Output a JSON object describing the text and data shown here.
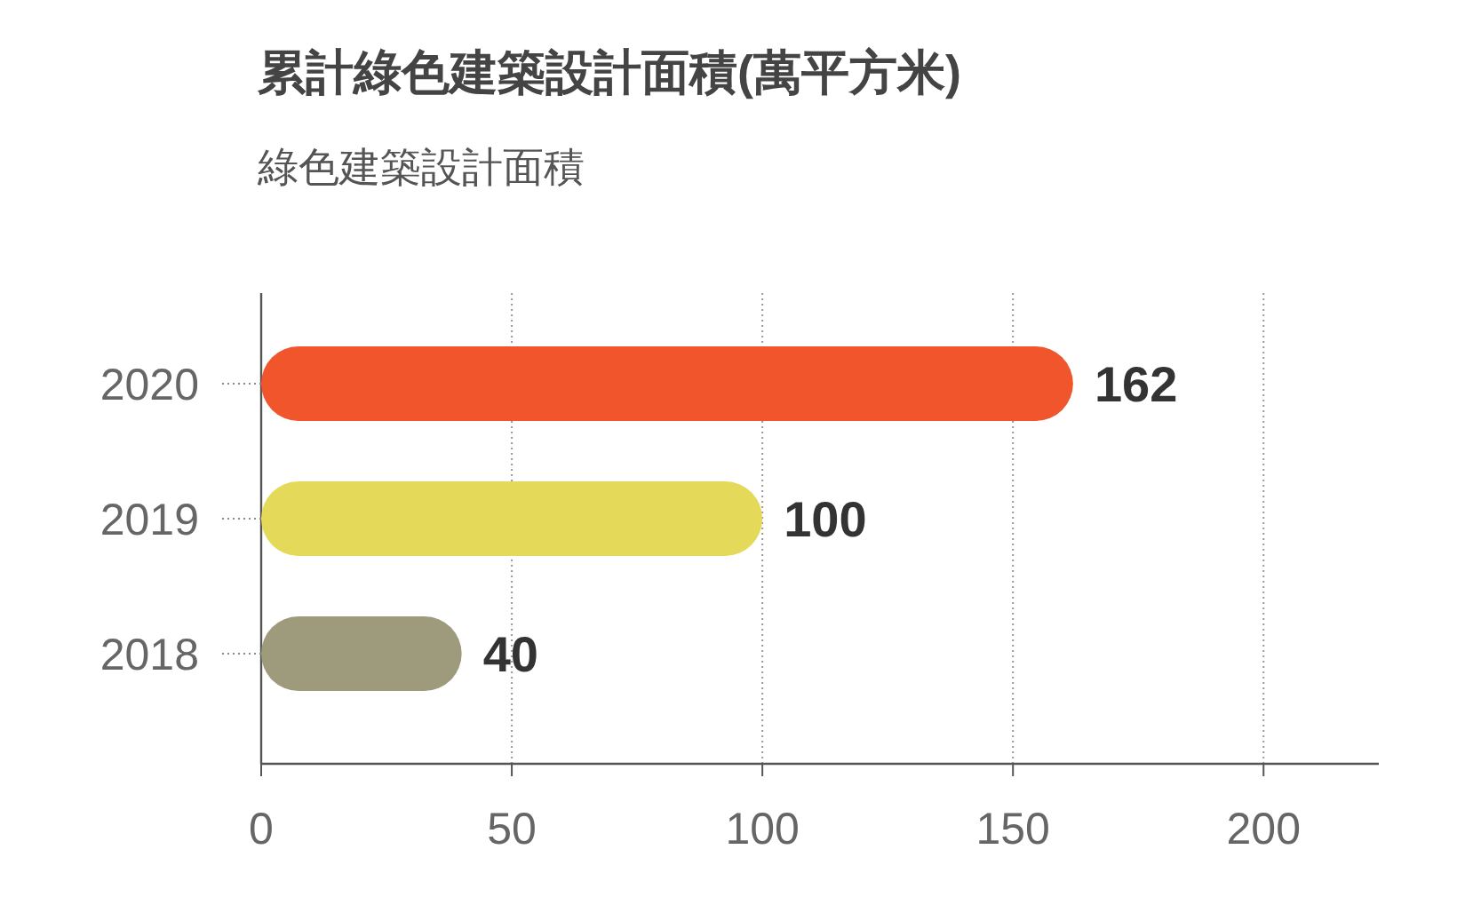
{
  "chart_data": {
    "type": "bar",
    "orientation": "horizontal",
    "title": "累計綠色建築設計面積(萬平方米)",
    "subtitle": "綠色建築設計面積",
    "categories": [
      "2020",
      "2019",
      "2018"
    ],
    "values": [
      162,
      100,
      40
    ],
    "colors": [
      "#f0552b",
      "#e5d95a",
      "#9e9a7c"
    ],
    "xlim": [
      0,
      223
    ],
    "xticks": [
      0,
      50,
      100,
      150,
      200
    ],
    "grid": "x",
    "data_labels": true
  }
}
